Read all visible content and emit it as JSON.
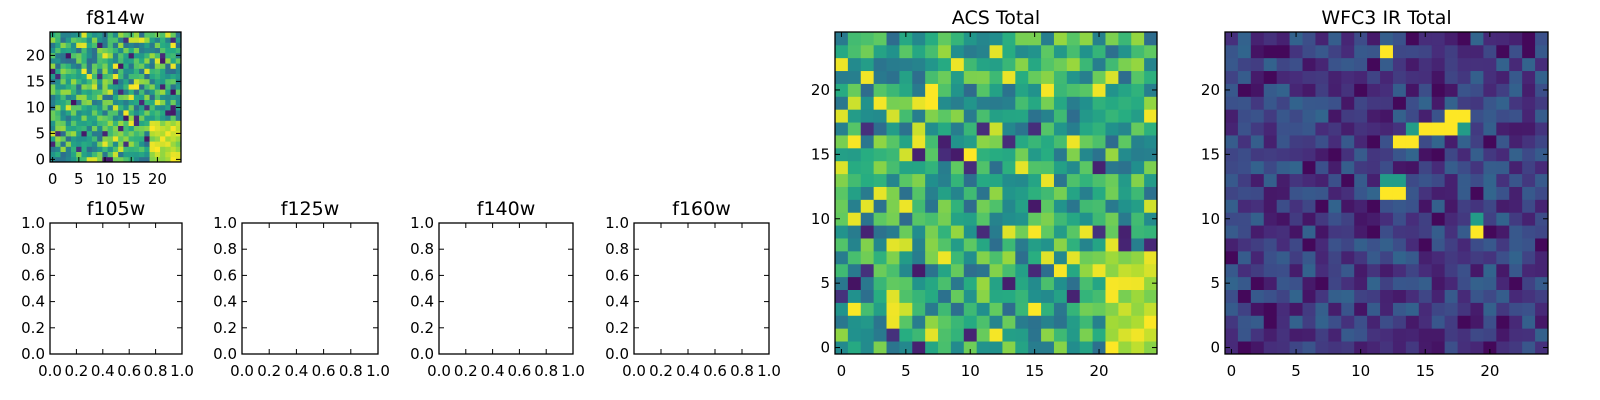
{
  "chart_data": [
    {
      "type": "heatmap",
      "title": "f814w",
      "size": 25,
      "seed": 11,
      "colormap": "viridis",
      "xticks": [
        0,
        5,
        10,
        15,
        20
      ],
      "yticks": [
        0,
        5,
        10,
        15,
        20
      ],
      "xlim": [
        -0.5,
        24.5
      ],
      "ylim": [
        -0.5,
        24.5
      ],
      "hot_pixels": [],
      "hot_region": [
        [
          19,
          24,
          0,
          7
        ]
      ]
    },
    {
      "type": "empty",
      "title": "f105w",
      "xticks": [
        "0.0",
        "0.2",
        "0.4",
        "0.6",
        "0.8",
        "1.0"
      ],
      "yticks": [
        "0.0",
        "0.2",
        "0.4",
        "0.6",
        "0.8",
        "1.0"
      ],
      "xlim": [
        0,
        1
      ],
      "ylim": [
        0,
        1
      ]
    },
    {
      "type": "empty",
      "title": "f125w",
      "xticks": [
        "0.0",
        "0.2",
        "0.4",
        "0.6",
        "0.8",
        "1.0"
      ],
      "yticks": [
        "0.0",
        "0.2",
        "0.4",
        "0.6",
        "0.8",
        "1.0"
      ],
      "xlim": [
        0,
        1
      ],
      "ylim": [
        0,
        1
      ]
    },
    {
      "type": "empty",
      "title": "f140w",
      "xticks": [
        "0.0",
        "0.2",
        "0.4",
        "0.6",
        "0.8",
        "1.0"
      ],
      "yticks": [
        "0.0",
        "0.2",
        "0.4",
        "0.6",
        "0.8",
        "1.0"
      ],
      "xlim": [
        0,
        1
      ],
      "ylim": [
        0,
        1
      ]
    },
    {
      "type": "empty",
      "title": "f160w",
      "xticks": [
        "0.0",
        "0.2",
        "0.4",
        "0.6",
        "0.8",
        "1.0"
      ],
      "yticks": [
        "0.0",
        "0.2",
        "0.4",
        "0.6",
        "0.8",
        "1.0"
      ],
      "xlim": [
        0,
        1
      ],
      "ylim": [
        0,
        1
      ]
    },
    {
      "type": "heatmap",
      "title": "ACS Total",
      "size": 25,
      "seed": 23,
      "colormap": "viridis",
      "xticks": [
        0,
        5,
        10,
        15,
        20
      ],
      "yticks": [
        0,
        5,
        10,
        15,
        20
      ],
      "xlim": [
        -0.5,
        24.5
      ],
      "ylim": [
        -0.5,
        24.5
      ],
      "hot_pixels": [
        [
          10,
          15
        ],
        [
          7,
          20
        ],
        [
          7,
          19
        ]
      ],
      "hot_region": [
        [
          21,
          24,
          0,
          7
        ]
      ]
    },
    {
      "type": "heatmap",
      "title": "WFC3 IR Total",
      "size": 25,
      "seed": 37,
      "colormap": "viridis",
      "xticks": [
        0,
        5,
        10,
        15,
        20
      ],
      "yticks": [
        0,
        5,
        10,
        15,
        20
      ],
      "xlim": [
        -0.5,
        24.5
      ],
      "ylim": [
        -0.5,
        24.5
      ],
      "low_base": true,
      "hot_pixels": [
        [
          12,
          23
        ],
        [
          13,
          16
        ],
        [
          14,
          16
        ],
        [
          15,
          17
        ],
        [
          16,
          17
        ],
        [
          17,
          18
        ],
        [
          18,
          18
        ],
        [
          17,
          17
        ],
        [
          12,
          12
        ],
        [
          13,
          12
        ],
        [
          19,
          9
        ]
      ],
      "warm_pixels": [
        [
          12,
          13
        ],
        [
          13,
          13
        ],
        [
          19,
          10
        ],
        [
          18,
          17
        ],
        [
          14,
          17
        ]
      ],
      "hot_region": []
    }
  ]
}
